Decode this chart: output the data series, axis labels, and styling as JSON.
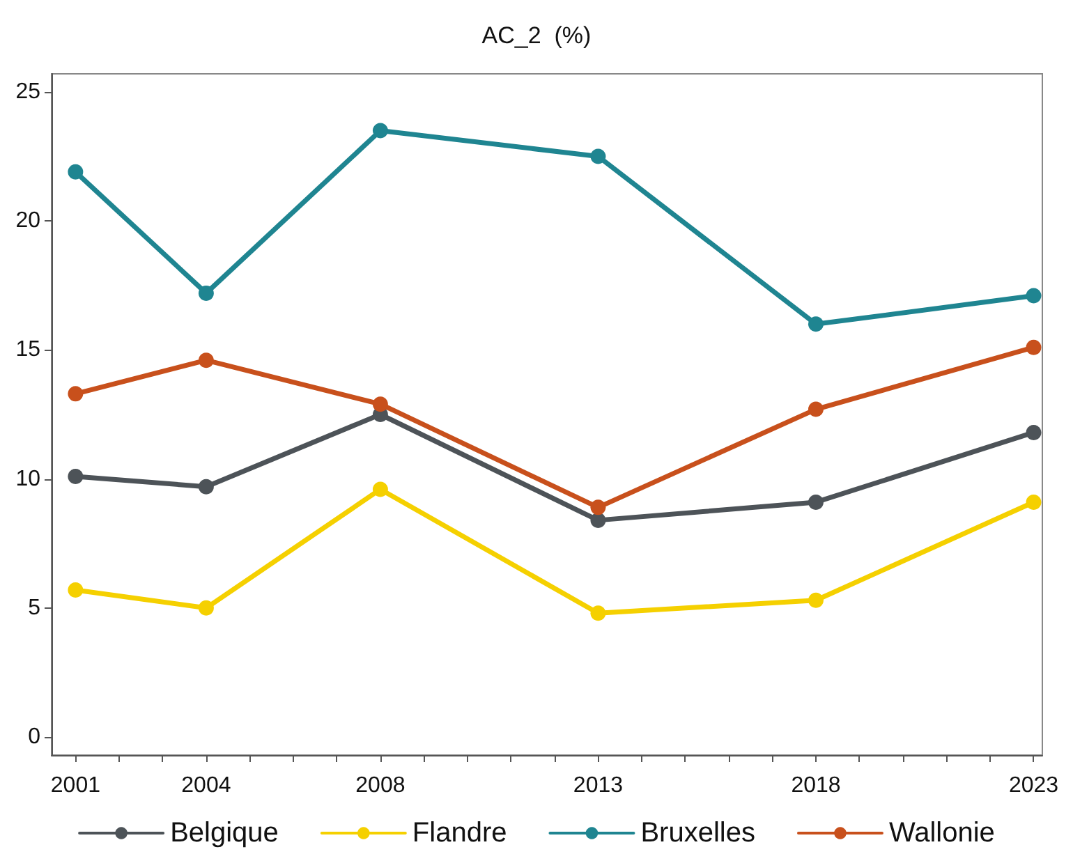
{
  "chart_data": {
    "type": "line",
    "title": "AC_2  (%)",
    "x": [
      2001,
      2004,
      2008,
      2013,
      2018,
      2023
    ],
    "series": [
      {
        "name": "Belgique",
        "color": "#4d5358",
        "values": [
          10.1,
          9.7,
          12.5,
          8.4,
          9.1,
          11.8
        ]
      },
      {
        "name": "Flandre",
        "color": "#f5d000",
        "values": [
          5.7,
          5.0,
          9.6,
          4.8,
          5.3,
          9.1
        ]
      },
      {
        "name": "Bruxelles",
        "color": "#1f8591",
        "values": [
          21.9,
          17.2,
          23.5,
          22.5,
          16.0,
          17.1
        ]
      },
      {
        "name": "Wallonie",
        "color": "#c8501c",
        "values": [
          13.3,
          14.6,
          12.9,
          8.9,
          12.7,
          15.1
        ]
      }
    ],
    "xlim": [
      2000.45,
      2023.2
    ],
    "xticks": [
      2001,
      {
        "value": 2002,
        "label": null
      },
      {
        "value": 2003,
        "label": null
      },
      2004,
      {
        "value": 2005,
        "label": null
      },
      {
        "value": 2006,
        "label": null
      },
      {
        "value": 2007,
        "label": null
      },
      2008,
      {
        "value": 2009,
        "label": null
      },
      {
        "value": 2010,
        "label": null
      },
      {
        "value": 2011,
        "label": null
      },
      {
        "value": 2012,
        "label": null
      },
      2013,
      {
        "value": 2014,
        "label": null
      },
      {
        "value": 2015,
        "label": null
      },
      {
        "value": 2016,
        "label": null
      },
      {
        "value": 2017,
        "label": null
      },
      2018,
      {
        "value": 2019,
        "label": null
      },
      {
        "value": 2020,
        "label": null
      },
      {
        "value": 2021,
        "label": null
      },
      {
        "value": 2022,
        "label": null
      },
      2023
    ],
    "ylim": [
      -0.7,
      25.7
    ],
    "yticks": [
      0,
      5,
      10,
      15,
      20,
      25
    ],
    "grid": false,
    "legend": "bottom",
    "marker": "circle",
    "line_style": "solid"
  }
}
